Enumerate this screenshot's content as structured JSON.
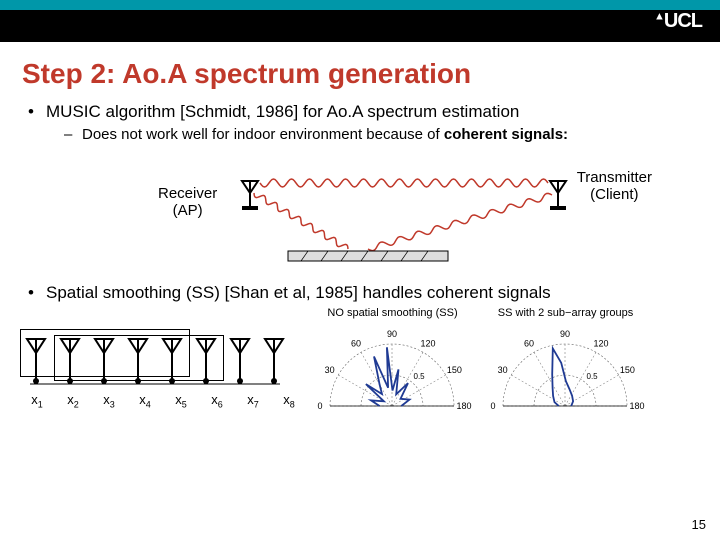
{
  "header": {
    "bar_color": "#0097a9",
    "black_strip_color": "#000000",
    "logo_text": "UCL",
    "logo_color": "#ffffff"
  },
  "title": {
    "text": "Step 2: Ao.A spectrum generation",
    "color": "#c0392b",
    "fontsize": 28
  },
  "bullet1": {
    "text": "MUSIC algorithm [Schmidt, 1986] for Ao.A spectrum estimation"
  },
  "sub_bullet1": {
    "prefix": "Does not work well for indoor environment because of ",
    "bold": "coherent signals:"
  },
  "diagram1": {
    "receiver_label_line1": "Receiver",
    "receiver_label_line2": "(AP)",
    "transmitter_label_line1": "Transmitter",
    "transmitter_label_line2": "(Client)",
    "direct_wave_color": "#c0392b",
    "reflected_wave_color": "#c0392b",
    "antenna_color": "#000000",
    "wall_fill": "#dddddd",
    "wall_stroke": "#000000"
  },
  "bullet2": {
    "text": "Spatial smoothing (SS) [Shan et al, 1985] handles coherent signals"
  },
  "antenna_array": {
    "count": 8,
    "labels": [
      "x",
      "x",
      "x",
      "x",
      "x",
      "x",
      "x",
      "x"
    ],
    "subs": [
      "1",
      "2",
      "3",
      "4",
      "5",
      "6",
      "7",
      "8"
    ],
    "antenna_color": "#000000",
    "subarray1": {
      "start": 0,
      "end": 4
    },
    "subarray2": {
      "start": 1,
      "end": 5
    }
  },
  "polar1": {
    "title": "NO spatial smoothing (SS)",
    "angle_labels": [
      "0",
      "30",
      "60",
      "90",
      "120",
      "150",
      "180"
    ],
    "radial_label": "0.5",
    "line_color": "#1f3a93",
    "grid_color": "#666666",
    "pattern": [
      [
        0,
        0.2
      ],
      [
        15,
        0.35
      ],
      [
        30,
        0.15
      ],
      [
        40,
        0.55
      ],
      [
        50,
        0.25
      ],
      [
        60,
        0.4
      ],
      [
        70,
        0.85
      ],
      [
        78,
        0.3
      ],
      [
        85,
        0.95
      ],
      [
        92,
        0.25
      ],
      [
        100,
        0.6
      ],
      [
        110,
        0.2
      ],
      [
        125,
        0.45
      ],
      [
        140,
        0.18
      ],
      [
        160,
        0.3
      ],
      [
        180,
        0.15
      ]
    ]
  },
  "polar2": {
    "title": "SS with 2 sub−array groups",
    "angle_labels": [
      "0",
      "30",
      "60",
      "90",
      "120",
      "150",
      "180"
    ],
    "radial_label": "0.5",
    "line_color": "#1f3a93",
    "grid_color": "#666666",
    "pattern": [
      [
        0,
        0.1
      ],
      [
        20,
        0.18
      ],
      [
        40,
        0.25
      ],
      [
        55,
        0.35
      ],
      [
        68,
        0.55
      ],
      [
        78,
        0.95
      ],
      [
        85,
        0.7
      ],
      [
        92,
        0.4
      ],
      [
        105,
        0.28
      ],
      [
        125,
        0.2
      ],
      [
        150,
        0.15
      ],
      [
        180,
        0.1
      ]
    ]
  },
  "page_number": "15"
}
